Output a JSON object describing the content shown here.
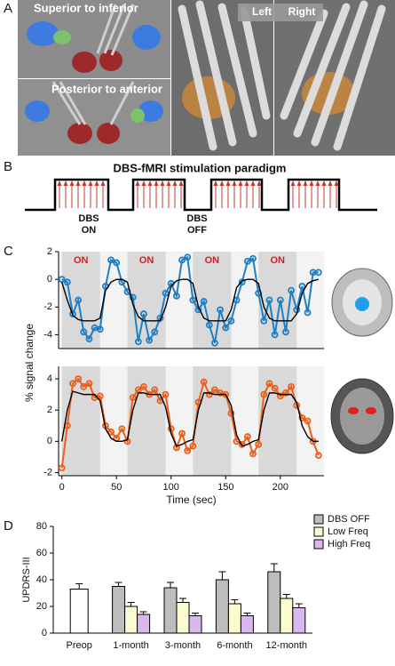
{
  "panel_labels": [
    "A",
    "B",
    "C",
    "D"
  ],
  "panel_a": {
    "top_label": "Superior to inferior",
    "bottom_label": "Posterior to anterior",
    "left": "Left",
    "right": "Right"
  },
  "panel_b": {
    "title": "DBS-fMRI stimulation paradigm",
    "on_label": [
      "DBS",
      "ON"
    ],
    "off_label": [
      "DBS",
      "OFF"
    ]
  },
  "chart_data": [
    {
      "type": "line",
      "on_label": "ON",
      "on_blocks": [
        [
          0,
          35
        ],
        [
          60,
          95
        ],
        [
          120,
          155
        ],
        [
          180,
          215
        ]
      ],
      "x": [
        0,
        5,
        10,
        15,
        20,
        25,
        30,
        35,
        40,
        45,
        50,
        55,
        60,
        65,
        70,
        75,
        80,
        85,
        90,
        95,
        100,
        105,
        110,
        115,
        120,
        125,
        130,
        135,
        140,
        145,
        150,
        155,
        160,
        165,
        170,
        175,
        180,
        185,
        190,
        195,
        200,
        205,
        210,
        215,
        220,
        225,
        230,
        235
      ],
      "series": [
        {
          "color": "#1f7fc4",
          "markers": true,
          "values": [
            0,
            -0.2,
            -2.5,
            -1.5,
            -3.8,
            -4.3,
            -3.5,
            -3.6,
            -0.5,
            1.4,
            1.2,
            -0.2,
            -0.9,
            -1.3,
            -4.5,
            -2.5,
            -4.4,
            -3.8,
            -2.8,
            -1.0,
            -0.3,
            -1.2,
            1.4,
            1.6,
            -1.5,
            -2.2,
            -1.6,
            -3.3,
            -4.6,
            -2.2,
            -3.5,
            -3.0,
            -1.5,
            -0.2,
            1.3,
            1.5,
            -1.0,
            -3.0,
            -1.5,
            -4.0,
            -1.5,
            -3.8,
            -0.8,
            -2.2,
            -0.5,
            -2.4,
            0.5,
            0.5
          ]
        },
        {
          "color": "#000000",
          "markers": false,
          "values": [
            -0.2,
            -1.5,
            -2.6,
            -2.9,
            -3.0,
            -3.0,
            -3.0,
            -2.8,
            -0.8,
            -0.2,
            0,
            0,
            -0.2,
            -1.8,
            -2.7,
            -3.0,
            -3.0,
            -3.0,
            -3.0,
            -2.0,
            -0.5,
            -0.1,
            0,
            0,
            -0.3,
            -2.0,
            -2.8,
            -3.0,
            -3.0,
            -3.0,
            -3.0,
            -2.2,
            -0.6,
            -0.1,
            0,
            0,
            -0.3,
            -2.0,
            -2.8,
            -3.0,
            -3.0,
            -3.0,
            -3.0,
            -2.5,
            -1.0,
            -0.3,
            -0.1,
            0
          ]
        }
      ],
      "xlim": [
        -3,
        240
      ],
      "ylim": [
        -5,
        2
      ],
      "yticks": [
        -4,
        -2,
        0,
        2
      ]
    },
    {
      "type": "line",
      "on_blocks": [
        [
          0,
          35
        ],
        [
          60,
          95
        ],
        [
          120,
          155
        ],
        [
          180,
          215
        ]
      ],
      "x": [
        0,
        5,
        10,
        15,
        20,
        25,
        30,
        35,
        40,
        45,
        50,
        55,
        60,
        65,
        70,
        75,
        80,
        85,
        90,
        95,
        100,
        105,
        110,
        115,
        120,
        125,
        130,
        135,
        140,
        145,
        150,
        155,
        160,
        165,
        170,
        175,
        180,
        185,
        190,
        195,
        200,
        205,
        210,
        215,
        220,
        225,
        230,
        235
      ],
      "series": [
        {
          "color": "#e8601c",
          "markers": true,
          "values": [
            -1.7,
            1.0,
            3.7,
            4.0,
            3.5,
            3.7,
            2.8,
            2.9,
            1.0,
            0.6,
            0.2,
            0.8,
            0,
            2.8,
            3.3,
            3.5,
            3.0,
            3.3,
            2.6,
            3.0,
            0.8,
            -0.4,
            0.5,
            -0.6,
            -0.3,
            2.5,
            3.8,
            3.0,
            3.3,
            3.1,
            3.0,
            1.8,
            0,
            -0.2,
            0.3,
            -0.8,
            -0.2,
            3.0,
            3.7,
            3.4,
            2.9,
            3.1,
            3.5,
            2.3,
            1.5,
            1.3,
            0,
            -0.9
          ]
        },
        {
          "color": "#000000",
          "markers": false,
          "values": [
            0,
            2.0,
            3.2,
            3.1,
            3.0,
            3.0,
            3.0,
            2.6,
            0.8,
            0.2,
            0,
            0,
            0.1,
            2.0,
            3.1,
            3.1,
            3.0,
            3.0,
            3.0,
            2.2,
            0.5,
            -0.3,
            -0.2,
            0,
            0.1,
            2.0,
            3.1,
            3.1,
            3.0,
            3.0,
            3.0,
            2.3,
            0.4,
            -0.3,
            -0.2,
            0,
            0.1,
            2.0,
            3.1,
            3.1,
            3.0,
            3.0,
            3.0,
            2.5,
            1.0,
            0.3,
            0,
            0
          ]
        }
      ],
      "xlim": [
        -3,
        240
      ],
      "ylim": [
        -2.2,
        4.8
      ],
      "yticks": [
        -2,
        0,
        2,
        4
      ],
      "xticks": [
        0,
        50,
        100,
        150,
        200
      ],
      "xlabel": "Time (sec)",
      "ylabel": "% signal change"
    },
    {
      "type": "bar",
      "ylabel": "UPDRS-III",
      "categories": [
        "Preop",
        "1-month",
        "3-month",
        "6-month",
        "12-month"
      ],
      "preop": {
        "value": 33,
        "error": 4,
        "color": "#ffffff"
      },
      "series": [
        {
          "name": "DBS OFF",
          "color": "#bdbdbd",
          "values": [
            null,
            35,
            34,
            40,
            46
          ],
          "errors": [
            null,
            3,
            4,
            6,
            6
          ]
        },
        {
          "name": "Low Freq",
          "color": "#fbfbd0",
          "values": [
            null,
            20,
            23,
            22,
            26
          ],
          "errors": [
            null,
            3,
            3,
            3,
            3
          ]
        },
        {
          "name": "High Freq",
          "color": "#d9b8ee",
          "values": [
            null,
            14,
            13,
            13,
            19
          ],
          "errors": [
            null,
            2,
            2,
            2,
            3
          ]
        }
      ],
      "ylim": [
        0,
        80
      ],
      "yticks": [
        0,
        20,
        40,
        60,
        80
      ]
    }
  ]
}
